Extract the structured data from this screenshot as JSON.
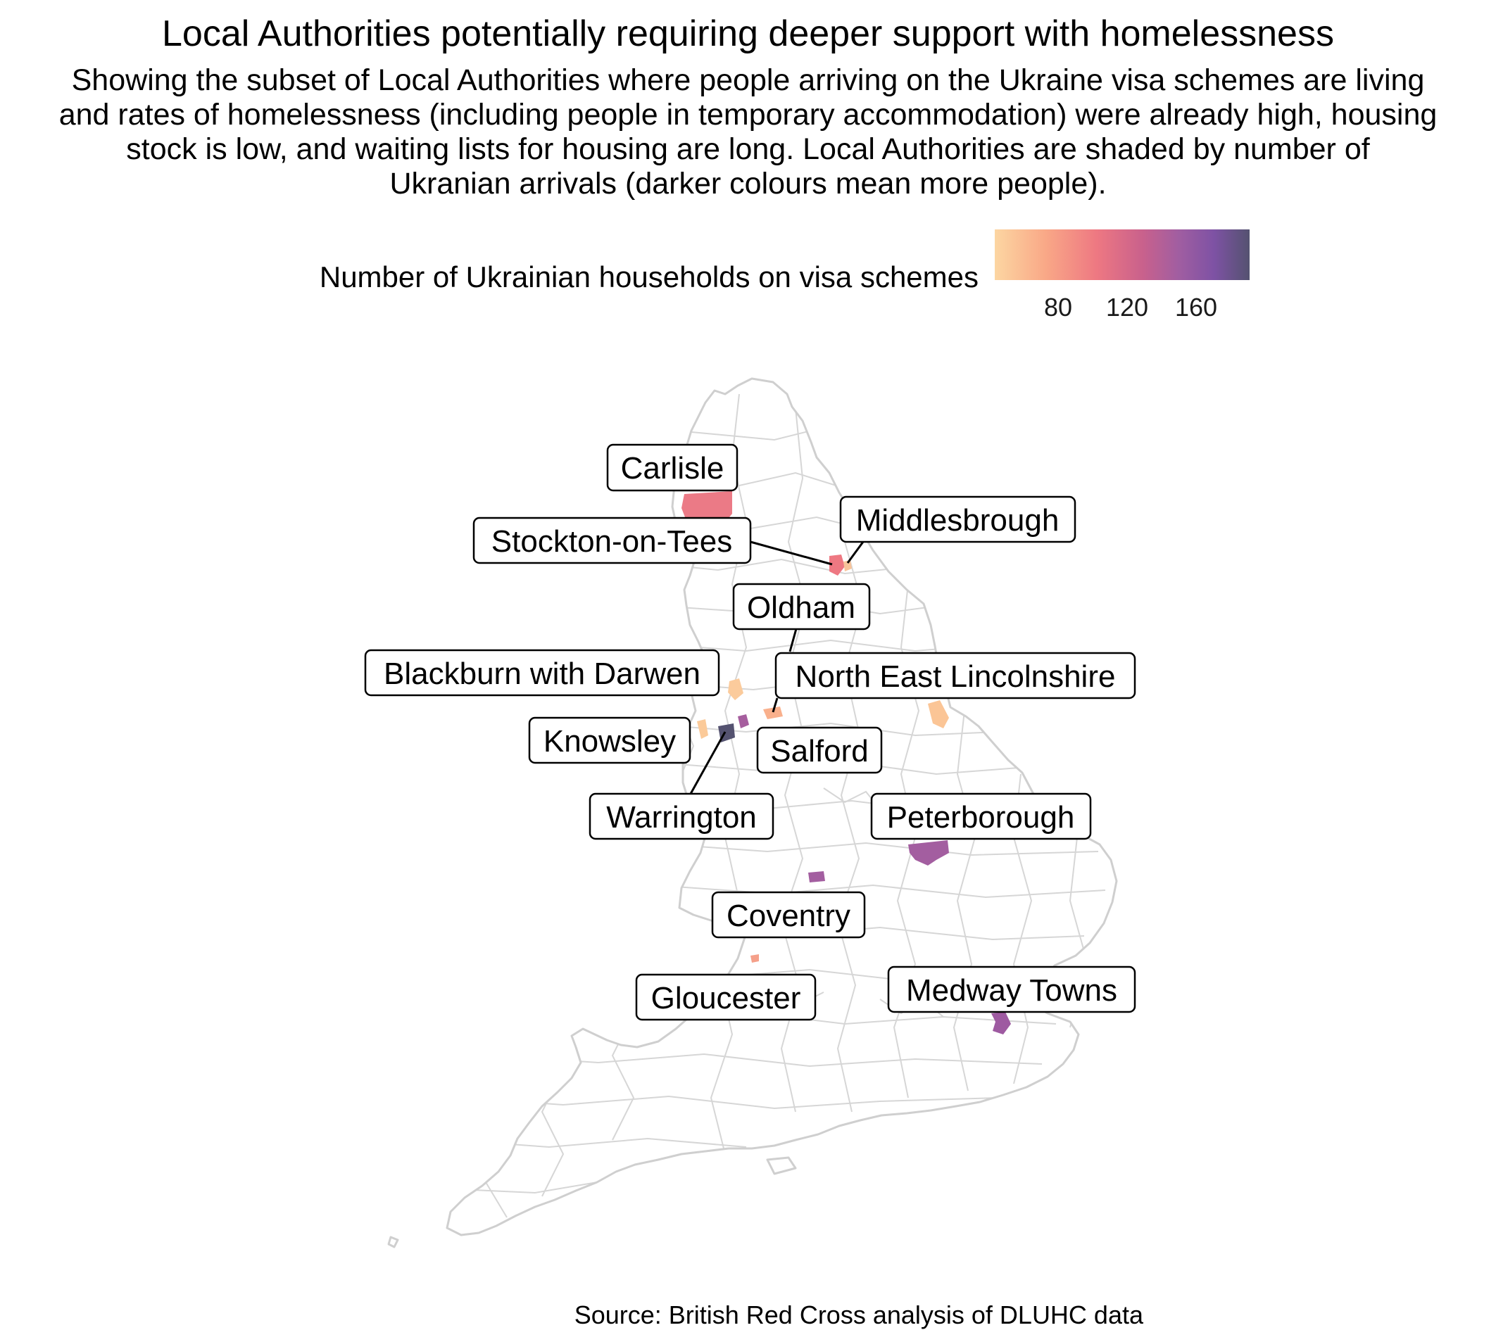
{
  "title": "Local Authorities potentially requiring deeper support with homelessness",
  "subtitle_lines": [
    "Showing the subset of Local Authorities where people arriving on the Ukraine visa schemes are living",
    "and rates of homelessness (including people in temporary accommodation) were already high, housing",
    "stock is low, and waiting lists for housing are long. Local Authorities are shaded by number of",
    "Ukranian arrivals (darker colours mean more people)."
  ],
  "legend": {
    "title": "Number of Ukrainian households on visa schemes",
    "ticks": [
      "80",
      "120",
      "160"
    ],
    "gradient_colors": [
      "#fcd6a2",
      "#f9a887",
      "#ee7882",
      "#c9618c",
      "#a15ea1",
      "#7e52a4",
      "#545270"
    ]
  },
  "caption": "Source: British Red Cross analysis of DLUHC data",
  "chart_data": {
    "type": "choropleth",
    "region": "England",
    "fill_variable": "Number of Ukrainian households on visa schemes",
    "highlighted_authorities": [
      {
        "name": "Carlisle",
        "color": "#eb7a86"
      },
      {
        "name": "Middlesbrough",
        "color": "#f8c49a"
      },
      {
        "name": "Stockton-on-Tees",
        "color": "#ee7882"
      },
      {
        "name": "Oldham",
        "color": "#f9b08c"
      },
      {
        "name": "Blackburn with Darwen",
        "color": "#fbcb9c"
      },
      {
        "name": "North East Lincolnshire",
        "color": "#fbc596"
      },
      {
        "name": "Knowsley",
        "color": "#fbca99"
      },
      {
        "name": "Salford",
        "color": "#a65e9e"
      },
      {
        "name": "Warrington",
        "color": "#545270"
      },
      {
        "name": "Peterborough",
        "color": "#a35ea0"
      },
      {
        "name": "Coventry",
        "color": "#a35ea0"
      },
      {
        "name": "Gloucester",
        "color": "#f5a08a"
      },
      {
        "name": "Medway Towns",
        "color": "#9e5aa1"
      }
    ]
  }
}
